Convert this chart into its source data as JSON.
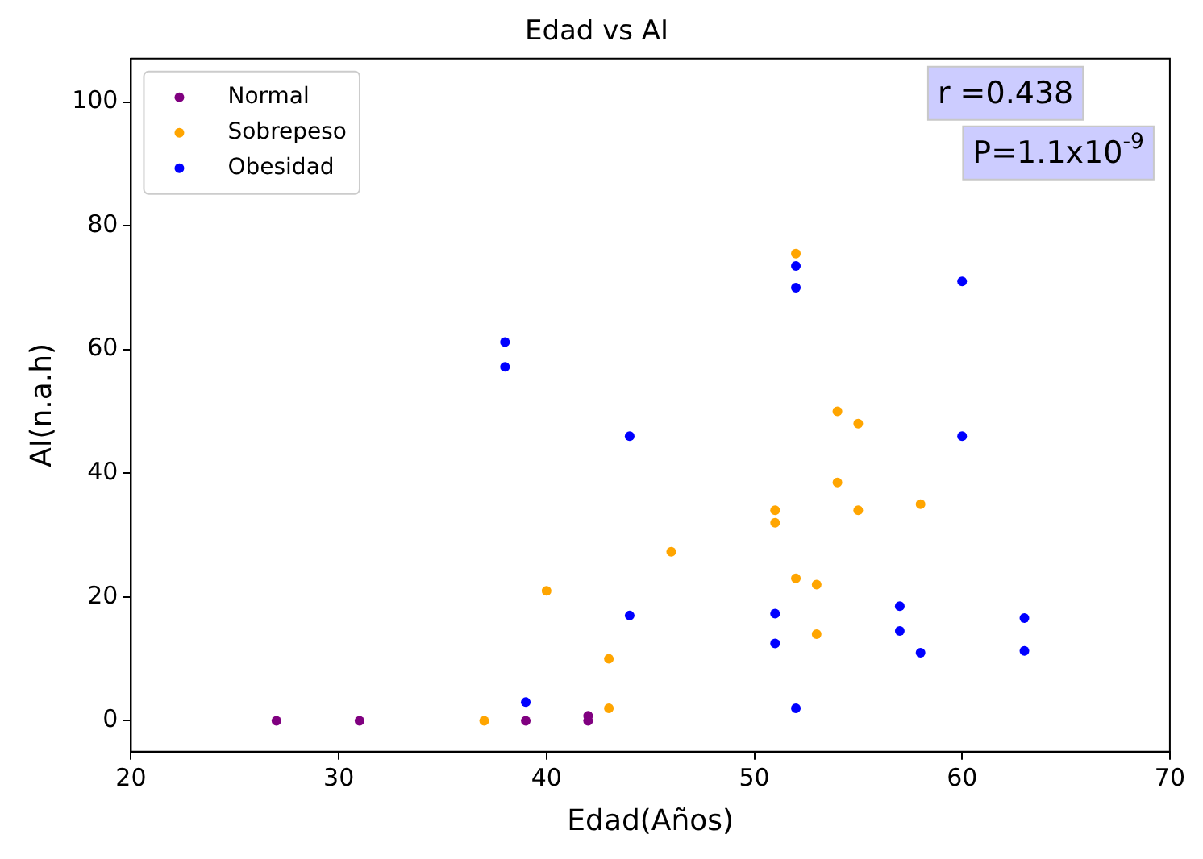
{
  "chart_data": {
    "type": "scatter",
    "title": "Edad vs AI",
    "xlabel": "Edad(Años)",
    "ylabel": "AI(n.a.h)",
    "xlim": [
      20,
      70
    ],
    "xticks": [
      20,
      30,
      40,
      50,
      60,
      70
    ],
    "ylim": [
      -5,
      107
    ],
    "yticks": [
      0,
      20,
      40,
      60,
      80,
      100
    ],
    "grid": false,
    "legend": "top left",
    "marker": "circle",
    "annotations": [
      "r =0.438",
      "P=1.1x10$^{-9}$"
    ],
    "series": [
      {
        "name": "Normal",
        "color": "#800080",
        "x": [
          27,
          31,
          39,
          42,
          42
        ],
        "values": [
          0,
          0,
          0,
          0,
          0.8
        ]
      },
      {
        "name": "Sobrepeso",
        "color": "#ffa500",
        "x": [
          37,
          40,
          43,
          43,
          46,
          51,
          51,
          52,
          52,
          53,
          53,
          54,
          54,
          55,
          55,
          58
        ],
        "values": [
          0,
          21,
          10,
          2,
          27.3,
          34,
          32,
          75.5,
          23,
          22,
          14,
          50,
          38.5,
          48,
          34,
          35
        ]
      },
      {
        "name": "Obesidad",
        "color": "#0000ff",
        "x": [
          38,
          38,
          39,
          44,
          44,
          51,
          51,
          52,
          52,
          52,
          57,
          57,
          58,
          60,
          60,
          63,
          63
        ],
        "values": [
          61.2,
          57.2,
          3,
          46,
          17,
          17.3,
          12.5,
          73.5,
          70,
          2,
          18.5,
          14.5,
          11,
          71,
          46,
          16.6,
          11.3
        ]
      }
    ]
  }
}
